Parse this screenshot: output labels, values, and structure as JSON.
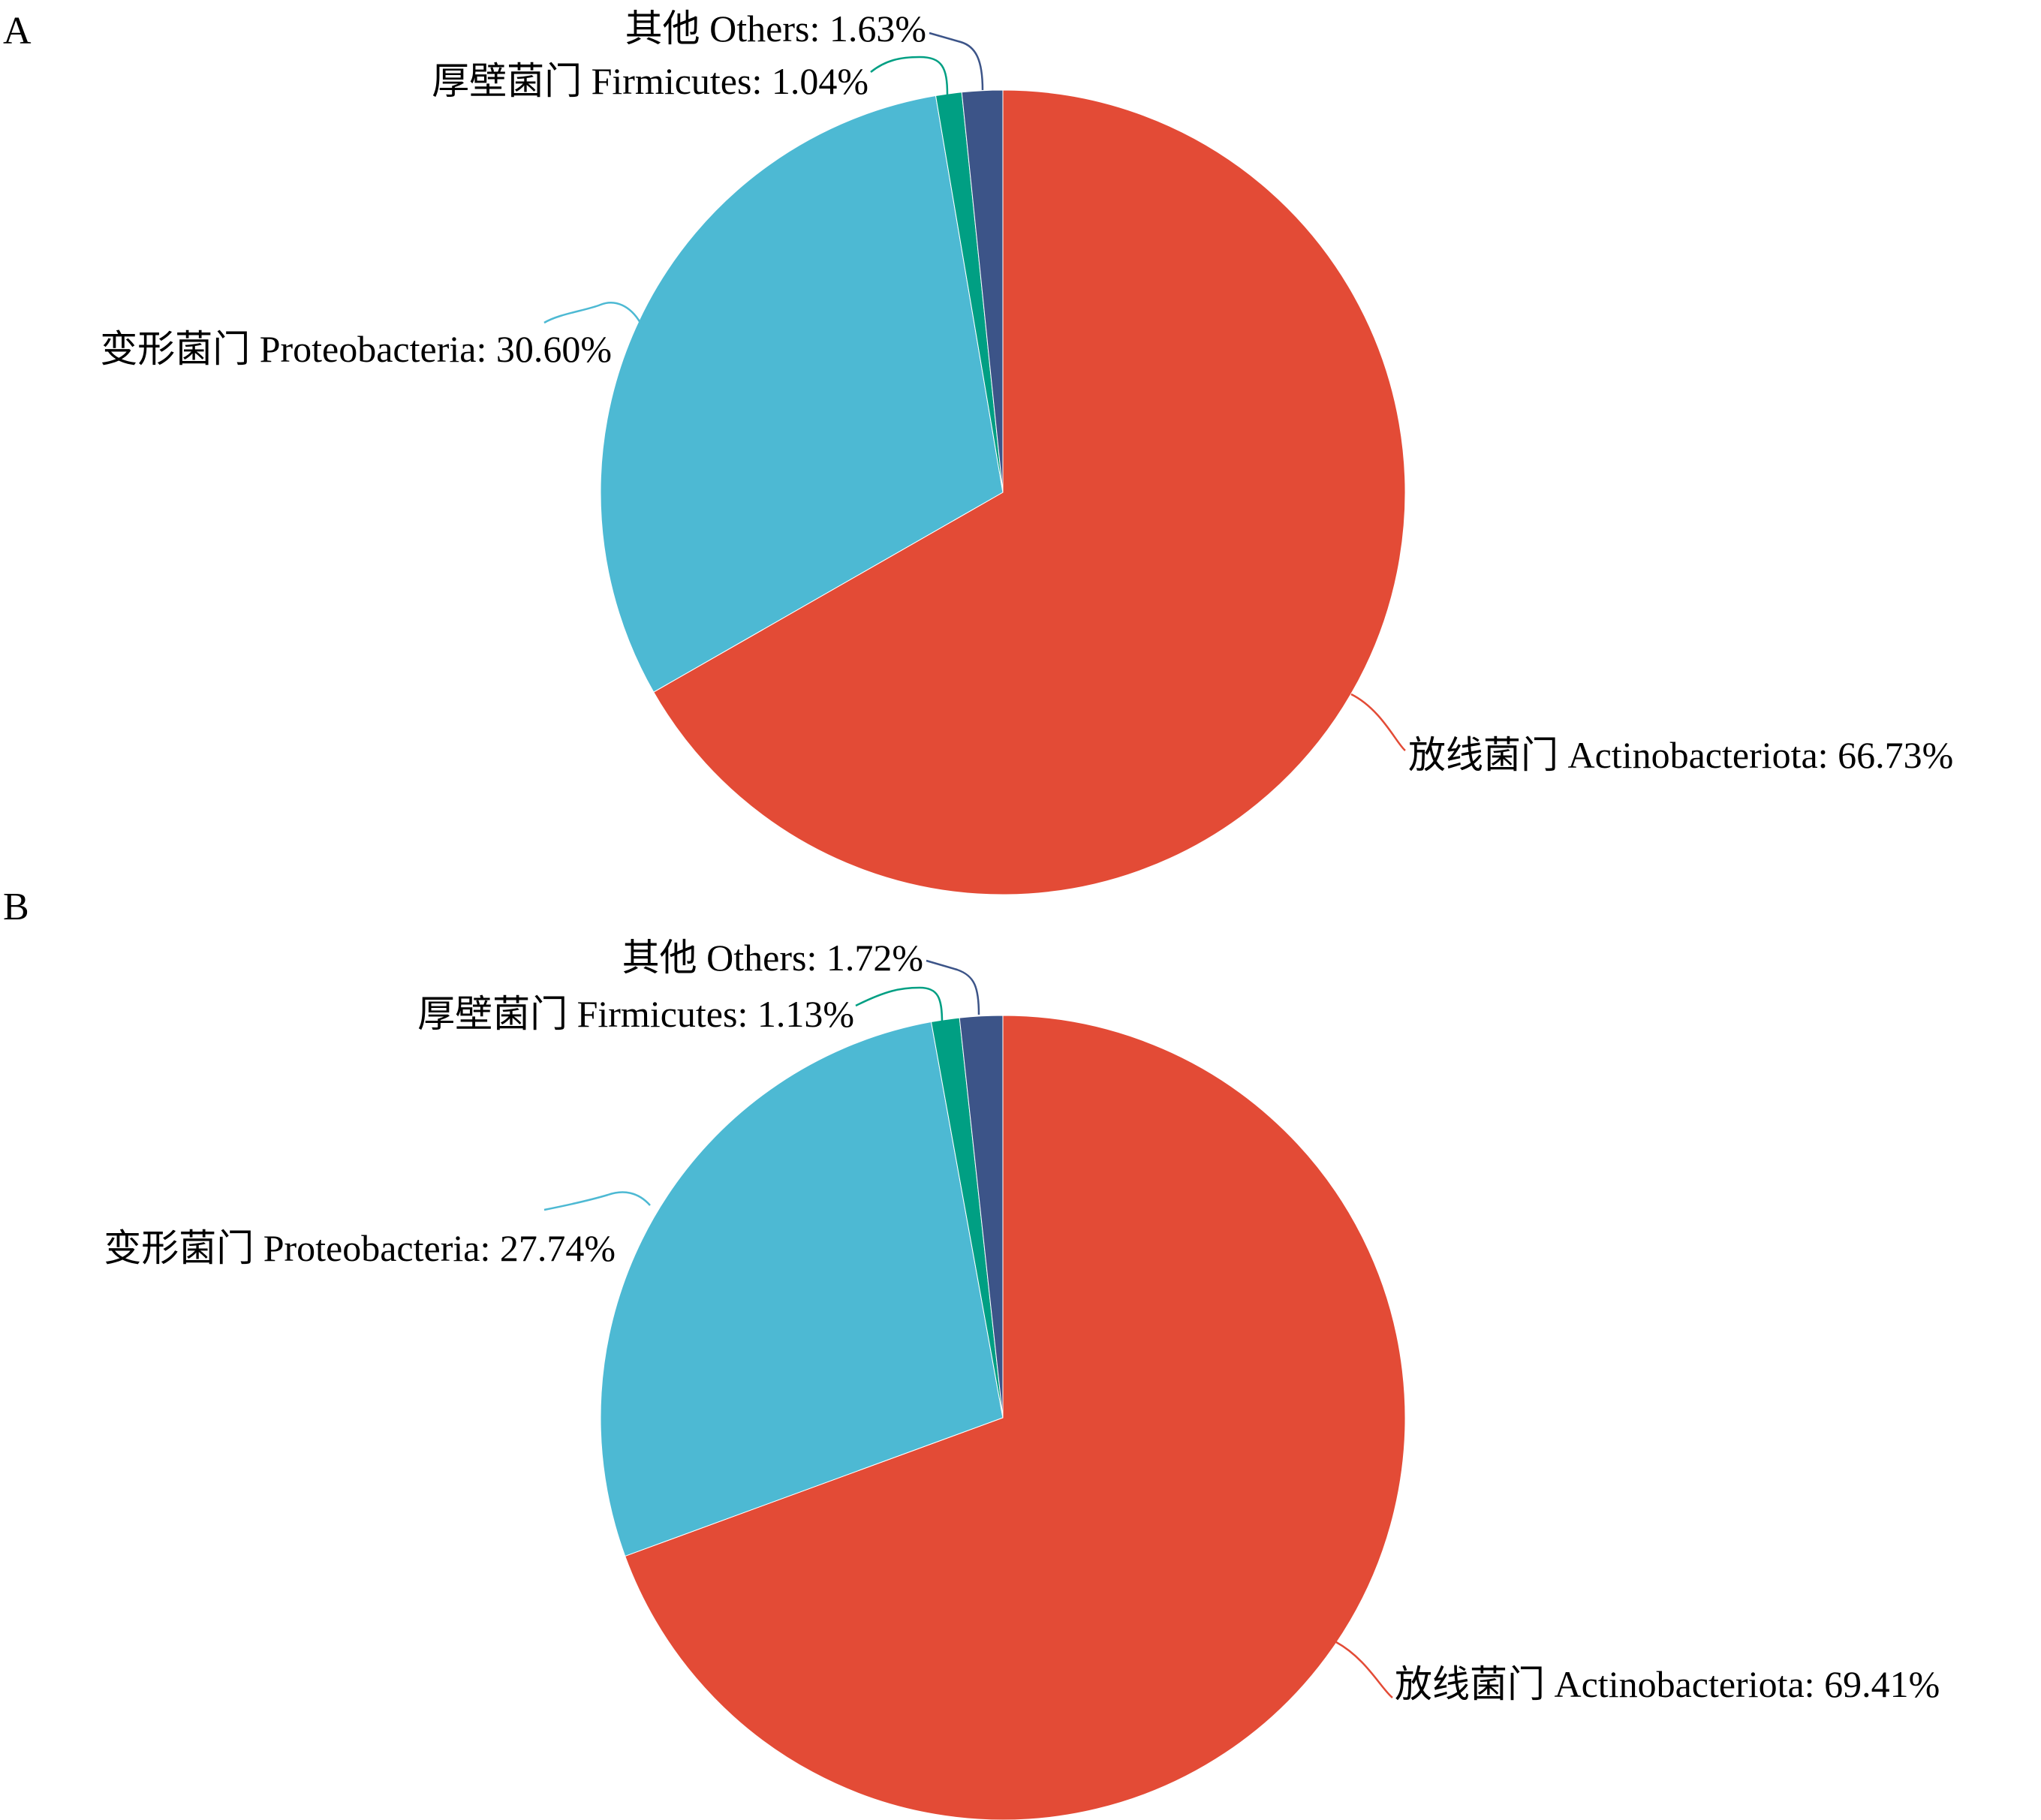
{
  "chart_data": [
    {
      "type": "pie",
      "panel_label": "A",
      "title": "",
      "start": "12 o'clock, clockwise",
      "slices": [
        {
          "label": "放线菌门  Actinobacteriota: 66.73%",
          "name": "放线菌门 Actinobacteriota",
          "value": 66.73,
          "color": "#e34b36"
        },
        {
          "label": "变形菌门  Proteobacteria: 30.60%",
          "name": "变形菌门 Proteobacteria",
          "value": 30.6,
          "color": "#4db9d3"
        },
        {
          "label": "厚壁菌门  Firmicutes: 1.04%",
          "name": "厚壁菌门 Firmicutes",
          "value": 1.04,
          "color": "#009f83"
        },
        {
          "label": "其他  Others: 1.63%",
          "name": "其他 Others",
          "value": 1.63,
          "color": "#3c5488"
        }
      ]
    },
    {
      "type": "pie",
      "panel_label": "B",
      "title": "",
      "start": "12 o'clock, clockwise",
      "slices": [
        {
          "label": "放线菌门  Actinobacteriota: 69.41%",
          "name": "放线菌门 Actinobacteriota",
          "value": 69.41,
          "color": "#e34b36"
        },
        {
          "label": "变形菌门  Proteobacteria: 27.74%",
          "name": "变形菌门 Proteobacteria",
          "value": 27.74,
          "color": "#4db9d3"
        },
        {
          "label": "厚壁菌门  Firmicutes: 1.13%",
          "name": "厚壁菌门 Firmicutes",
          "value": 1.13,
          "color": "#009f83"
        },
        {
          "label": "其他  Others: 1.72%",
          "name": "其他 Others",
          "value": 1.72,
          "color": "#3c5488"
        }
      ]
    }
  ]
}
